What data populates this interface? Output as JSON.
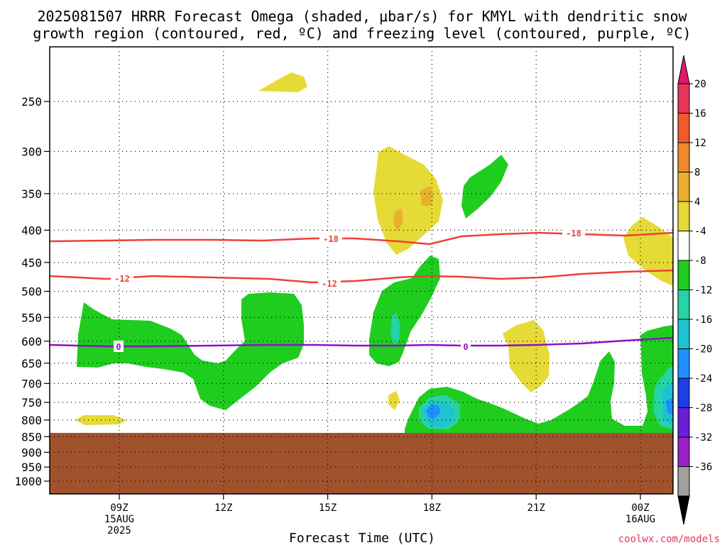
{
  "chart_data": {
    "type": "contour",
    "title_line1": "2025081507 HRRR Forecast Omega (shaded, μbar/s) for KMYL with dendritic snow",
    "title_line2": "growth region (contoured, red, ºC) and freezing level (contoured, purple, ºC)",
    "xlabel": "Forecast Time (UTC)",
    "credit": "coolwx.com/models",
    "x_ticks": [
      {
        "hour": 9,
        "label": "09Z",
        "sub1": "15AUG",
        "sub2": "2025"
      },
      {
        "hour": 12,
        "label": "12Z",
        "sub1": "",
        "sub2": ""
      },
      {
        "hour": 15,
        "label": "15Z",
        "sub1": "",
        "sub2": ""
      },
      {
        "hour": 18,
        "label": "18Z",
        "sub1": "",
        "sub2": ""
      },
      {
        "hour": 21,
        "label": "21Z",
        "sub1": "",
        "sub2": ""
      },
      {
        "hour": 24,
        "label": "00Z",
        "sub1": "16AUG",
        "sub2": ""
      }
    ],
    "y_ticks": [
      "250",
      "300",
      "350",
      "400",
      "450",
      "500",
      "550",
      "600",
      "650",
      "700",
      "750",
      "800",
      "850",
      "900",
      "950",
      "1000"
    ],
    "y_reverse": true,
    "colorbar": {
      "labels": [
        "20",
        "16",
        "12",
        "8",
        "4",
        "-4",
        "-8",
        "-12",
        "-16",
        "-20",
        "-24",
        "-28",
        "-32",
        "-36"
      ],
      "colors": [
        "#e8365a",
        "#f05a2d",
        "#ee8a2a",
        "#e9b030",
        "#e6da36",
        "#ffffff",
        "#1fcd1f",
        "#25d3a6",
        "#1fc3cf",
        "#1e90ff",
        "#1e3fe6",
        "#6a1fd6",
        "#9a1fc6",
        "#a0a0a0"
      ],
      "top_arrow_color": "#e0166f",
      "bottom_arrow_color": "#000000"
    },
    "ground_color": "#a0522d",
    "contours": [
      {
        "name": "-18",
        "color": "#ee4035"
      },
      {
        "name": "-12",
        "color": "#ee4035"
      },
      {
        "name": "0",
        "color": "#8e10c8"
      }
    ],
    "contour_labels": [
      "-18",
      "-18",
      "-12",
      "-12",
      "0",
      "0"
    ],
    "shading_colors": {
      "yellow": "#e6da36",
      "orange": "#e9b030",
      "green": "#1fcd1f",
      "teal": "#25d3a6",
      "cyan": "#1fc3cf",
      "blue": "#1e90ff"
    }
  }
}
